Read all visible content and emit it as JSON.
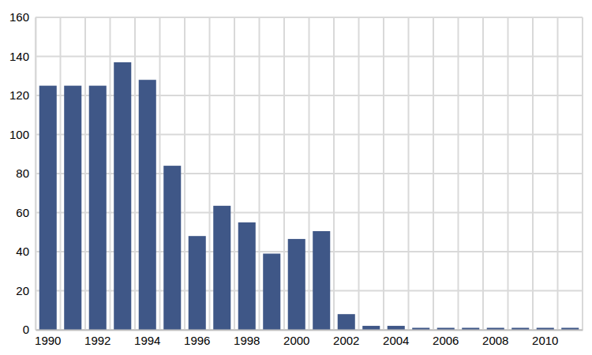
{
  "chart_data": {
    "type": "bar",
    "categories": [
      "1990",
      null,
      "1992",
      null,
      "1994",
      null,
      "1996",
      null,
      "1998",
      null,
      "2000",
      null,
      "2002",
      null,
      "2004",
      null,
      "2006",
      null,
      "2008",
      null,
      "2010",
      null
    ],
    "values": [
      125,
      125,
      125,
      137,
      128,
      84,
      48,
      63.5,
      55,
      39,
      46.5,
      50.5,
      8,
      2,
      2,
      1,
      1,
      1,
      1,
      1,
      1,
      1
    ],
    "color": "#3f5787",
    "ylim": [
      0,
      160
    ],
    "yticks": [
      0,
      20,
      40,
      60,
      80,
      100,
      120,
      140,
      160
    ],
    "grid": true
  }
}
